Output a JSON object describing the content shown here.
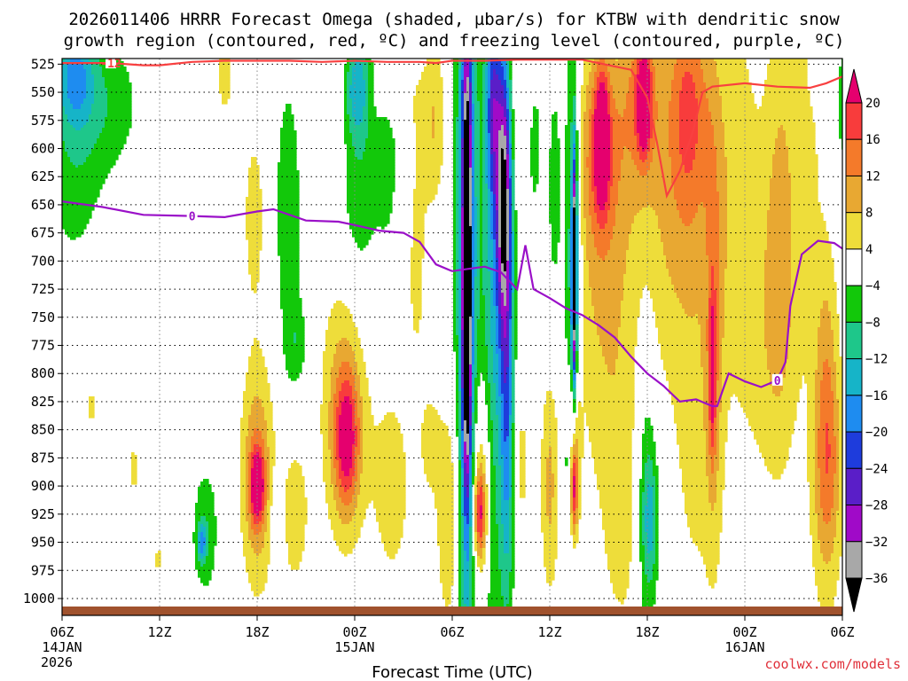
{
  "chart_data": {
    "type": "heatmap",
    "title_line1": "2026011406 HRRR Forecast Omega (shaded, µbar/s) for KTBW with dendritic snow",
    "title_line2": "growth region (contoured, red, ºC) and freezing level (contoured, purple, ºC)",
    "xlabel": "Forecast Time (UTC)",
    "x_ticks": [
      {
        "hour": 0,
        "label": "06Z",
        "sub1": "14JAN",
        "sub2": "2026"
      },
      {
        "hour": 6,
        "label": "12Z",
        "sub1": "",
        "sub2": ""
      },
      {
        "hour": 12,
        "label": "18Z",
        "sub1": "",
        "sub2": ""
      },
      {
        "hour": 18,
        "label": "00Z",
        "sub1": "15JAN",
        "sub2": ""
      },
      {
        "hour": 24,
        "label": "06Z",
        "sub1": "",
        "sub2": ""
      },
      {
        "hour": 30,
        "label": "12Z",
        "sub1": "",
        "sub2": ""
      },
      {
        "hour": 36,
        "label": "18Z",
        "sub1": "",
        "sub2": ""
      },
      {
        "hour": 42,
        "label": "00Z",
        "sub1": "16JAN",
        "sub2": ""
      },
      {
        "hour": 48,
        "label": "06Z",
        "sub1": "",
        "sub2": ""
      }
    ],
    "x_range_hours": [
      0,
      48
    ],
    "y_range_hPa": [
      520,
      1015
    ],
    "y_ticks": [
      "525",
      "550",
      "575",
      "600",
      "625",
      "650",
      "675",
      "700",
      "725",
      "750",
      "775",
      "800",
      "825",
      "850",
      "875",
      "900",
      "925",
      "950",
      "975",
      "1000"
    ],
    "colorbar": {
      "labels": [
        "20",
        "16",
        "12",
        "8",
        "4",
        "−4",
        "−8",
        "−12",
        "−16",
        "−20",
        "−24",
        "−28",
        "−32",
        "−36"
      ],
      "bins": [
        {
          "lo": 20,
          "hi": 24,
          "color": "#e5006e"
        },
        {
          "lo": 16,
          "hi": 20,
          "color": "#f83c3c"
        },
        {
          "lo": 12,
          "hi": 16,
          "color": "#f47a2a"
        },
        {
          "lo": 8,
          "hi": 12,
          "color": "#e8a832"
        },
        {
          "lo": 4,
          "hi": 8,
          "color": "#eedd3a"
        },
        {
          "lo": -4,
          "hi": 4,
          "color": "#ffffff"
        },
        {
          "lo": -8,
          "hi": -4,
          "color": "#12c80a"
        },
        {
          "lo": -12,
          "hi": -8,
          "color": "#1ec78a"
        },
        {
          "lo": -16,
          "hi": -12,
          "color": "#16b4c8"
        },
        {
          "lo": -20,
          "hi": -16,
          "color": "#1e8cf0"
        },
        {
          "lo": -24,
          "hi": -20,
          "color": "#1e3cdc"
        },
        {
          "lo": -28,
          "hi": -24,
          "color": "#5a1ec8"
        },
        {
          "lo": -32,
          "hi": -28,
          "color": "#a00ac8"
        },
        {
          "lo": -36,
          "hi": -32,
          "color": "#a8a8a8"
        },
        {
          "lo": -40,
          "hi": -36,
          "color": "#000000"
        }
      ]
    },
    "omega_features": [
      {
        "hour": 0.7,
        "p": 600,
        "dh": 1.3,
        "dp": 75,
        "amp": -7
      },
      {
        "hour": 0.8,
        "p": 535,
        "dh": 0.8,
        "dp": 30,
        "amp": -13
      },
      {
        "hour": 3.0,
        "p": 560,
        "dh": 1.4,
        "dp": 45,
        "amp": -6
      },
      {
        "hour": 1.8,
        "p": 830,
        "dh": 0.25,
        "dp": 18,
        "amp": 5
      },
      {
        "hour": 4.4,
        "p": 885,
        "dh": 0.3,
        "dp": 22,
        "amp": 5
      },
      {
        "hour": 5.9,
        "p": 965,
        "dh": 0.2,
        "dp": 12,
        "amp": 5
      },
      {
        "hour": 10.0,
        "p": 535,
        "dh": 0.5,
        "dp": 40,
        "amp": 5
      },
      {
        "hour": 8.8,
        "p": 940,
        "dh": 0.6,
        "dp": 45,
        "amp": -7
      },
      {
        "hour": 8.6,
        "p": 950,
        "dh": 0.2,
        "dp": 12,
        "amp": -13
      },
      {
        "hour": 12.0,
        "p": 890,
        "dh": 0.7,
        "dp": 70,
        "amp": 13
      },
      {
        "hour": 12.0,
        "p": 900,
        "dh": 0.3,
        "dp": 22,
        "amp": 18
      },
      {
        "hour": 11.8,
        "p": 660,
        "dh": 0.5,
        "dp": 60,
        "amp": 6
      },
      {
        "hour": 13.2,
        "p": 930,
        "dh": 0.3,
        "dp": 30,
        "amp": -6
      },
      {
        "hour": 14.3,
        "p": 925,
        "dh": 0.7,
        "dp": 55,
        "amp": 6
      },
      {
        "hour": 13.9,
        "p": 655,
        "dh": 0.6,
        "dp": 90,
        "amp": -7
      },
      {
        "hour": 14.4,
        "p": 775,
        "dh": 0.5,
        "dp": 30,
        "amp": -6
      },
      {
        "hour": 17.0,
        "p": 540,
        "dh": 0.9,
        "dp": 50,
        "amp": 6
      },
      {
        "hour": 17.4,
        "p": 830,
        "dh": 1.0,
        "dp": 85,
        "amp": 11
      },
      {
        "hour": 17.5,
        "p": 860,
        "dh": 0.5,
        "dp": 40,
        "amp": 16
      },
      {
        "hour": 18.2,
        "p": 610,
        "dh": 0.9,
        "dp": 100,
        "amp": -8
      },
      {
        "hour": 18.1,
        "p": 545,
        "dh": 0.6,
        "dp": 30,
        "amp": -13
      },
      {
        "hour": 20.0,
        "p": 600,
        "dh": 0.5,
        "dp": 60,
        "amp": -6
      },
      {
        "hour": 20.3,
        "p": 900,
        "dh": 0.9,
        "dp": 70,
        "amp": 6
      },
      {
        "hour": 21.8,
        "p": 720,
        "dh": 0.4,
        "dp": 55,
        "amp": 5
      },
      {
        "hour": 20.0,
        "p": 545,
        "dh": 1.0,
        "dp": 25,
        "amp": 5
      },
      {
        "hour": 22.3,
        "p": 590,
        "dh": 0.7,
        "dp": 60,
        "amp": 5
      },
      {
        "hour": 22.6,
        "p": 860,
        "dh": 0.5,
        "dp": 40,
        "amp": 5
      },
      {
        "hour": 24.9,
        "p": 680,
        "dh": 0.45,
        "dp": 280,
        "amp": -21
      },
      {
        "hour": 24.9,
        "p": 720,
        "dh": 0.18,
        "dp": 130,
        "amp": -38
      },
      {
        "hour": 23.8,
        "p": 930,
        "dh": 0.55,
        "dp": 70,
        "amp": 8
      },
      {
        "hour": 23.0,
        "p": 570,
        "dh": 0.4,
        "dp": 50,
        "amp": 5
      },
      {
        "hour": 25.8,
        "p": 900,
        "dh": 0.5,
        "dp": 70,
        "amp": 11
      },
      {
        "hour": 25.7,
        "p": 925,
        "dh": 0.25,
        "dp": 28,
        "amp": 17
      },
      {
        "hour": 26.5,
        "p": 560,
        "dh": 0.3,
        "dp": 60,
        "amp": -16
      },
      {
        "hour": 26.5,
        "p": 760,
        "dh": 0.55,
        "dp": 240,
        "amp": -12
      },
      {
        "hour": 27.2,
        "p": 640,
        "dh": 0.35,
        "dp": 90,
        "amp": -34
      },
      {
        "hour": 27.4,
        "p": 850,
        "dh": 0.3,
        "dp": 110,
        "amp": -17
      },
      {
        "hour": 28.0,
        "p": 560,
        "dh": 0.6,
        "dp": 70,
        "amp": 5
      },
      {
        "hour": 28.2,
        "p": 880,
        "dh": 0.5,
        "dp": 60,
        "amp": 5
      },
      {
        "hour": 29.0,
        "p": 595,
        "dh": 0.4,
        "dp": 60,
        "amp": -6
      },
      {
        "hour": 30.0,
        "p": 900,
        "dh": 0.4,
        "dp": 70,
        "amp": 9
      },
      {
        "hour": 31.5,
        "p": 870,
        "dh": 0.3,
        "dp": 60,
        "amp": 13
      },
      {
        "hour": 31.5,
        "p": 900,
        "dh": 0.15,
        "dp": 28,
        "amp": 18
      },
      {
        "hour": 31.4,
        "p": 700,
        "dh": 0.35,
        "dp": 160,
        "amp": -13
      },
      {
        "hour": 31.5,
        "p": 710,
        "dh": 0.1,
        "dp": 70,
        "amp": -40
      },
      {
        "hour": 30.3,
        "p": 640,
        "dh": 0.35,
        "dp": 90,
        "amp": -6
      },
      {
        "hour": 31.2,
        "p": 880,
        "dh": 0.3,
        "dp": 30,
        "amp": -6
      },
      {
        "hour": 33.1,
        "p": 600,
        "dh": 1.0,
        "dp": 70,
        "amp": 14
      },
      {
        "hour": 33.2,
        "p": 590,
        "dh": 0.3,
        "dp": 40,
        "amp": 20
      },
      {
        "hour": 33.1,
        "p": 760,
        "dh": 1.3,
        "dp": 100,
        "amp": 6
      },
      {
        "hour": 32.9,
        "p": 962,
        "dh": 0.15,
        "dp": 18,
        "amp": -6
      },
      {
        "hour": 35.6,
        "p": 550,
        "dh": 0.9,
        "dp": 60,
        "amp": 12
      },
      {
        "hour": 35.8,
        "p": 560,
        "dh": 0.3,
        "dp": 30,
        "amp": 21
      },
      {
        "hour": 34.5,
        "p": 920,
        "dh": 1.0,
        "dp": 90,
        "amp": 6
      },
      {
        "hour": 35.9,
        "p": 900,
        "dh": 0.5,
        "dp": 120,
        "amp": -8
      },
      {
        "hour": 36.2,
        "p": 930,
        "dh": 0.35,
        "dp": 40,
        "amp": -10
      },
      {
        "hour": 36.2,
        "p": 700,
        "dh": 1.8,
        "dp": 90,
        "amp": 5
      },
      {
        "hour": 38.5,
        "p": 560,
        "dh": 0.9,
        "dp": 70,
        "amp": 12
      },
      {
        "hour": 38.8,
        "p": 620,
        "dh": 1.6,
        "dp": 120,
        "amp": 6
      },
      {
        "hour": 40.1,
        "p": 770,
        "dh": 0.4,
        "dp": 140,
        "amp": 8
      },
      {
        "hour": 40.0,
        "p": 800,
        "dh": 0.15,
        "dp": 50,
        "amp": 13
      },
      {
        "hour": 39.0,
        "p": 870,
        "dh": 1.0,
        "dp": 110,
        "amp": 5
      },
      {
        "hour": 41.5,
        "p": 640,
        "dh": 1.0,
        "dp": 130,
        "amp": 5
      },
      {
        "hour": 43.5,
        "p": 780,
        "dh": 1.3,
        "dp": 100,
        "amp": 5
      },
      {
        "hour": 44.1,
        "p": 680,
        "dh": 0.6,
        "dp": 120,
        "amp": 5
      },
      {
        "hour": 45.3,
        "p": 600,
        "dh": 1.5,
        "dp": 150,
        "amp": 5
      },
      {
        "hour": 47.0,
        "p": 930,
        "dh": 0.7,
        "dp": 80,
        "amp": 6
      },
      {
        "hour": 47.1,
        "p": 870,
        "dh": 0.6,
        "dp": 60,
        "amp": 10
      },
      {
        "hour": 47.0,
        "p": 770,
        "dh": 0.5,
        "dp": 60,
        "amp": 6
      },
      {
        "hour": 46.5,
        "p": 525,
        "dh": 0.3,
        "dp": 20,
        "amp": -6
      },
      {
        "hour": 48.0,
        "p": 560,
        "dh": 0.3,
        "dp": 50,
        "amp": -7
      }
    ],
    "freezing_level": {
      "label": "0",
      "color": "#9a10c8",
      "points": [
        [
          0,
          647
        ],
        [
          2.5,
          652
        ],
        [
          5,
          659
        ],
        [
          8,
          660
        ],
        [
          10,
          661
        ],
        [
          12,
          656
        ],
        [
          13,
          654
        ],
        [
          15,
          664
        ],
        [
          17,
          665
        ],
        [
          18,
          668
        ],
        [
          19.5,
          673
        ],
        [
          21,
          675
        ],
        [
          22,
          683
        ],
        [
          23,
          703
        ],
        [
          24,
          709
        ],
        [
          25,
          707
        ],
        [
          26,
          705
        ],
        [
          27,
          710
        ],
        [
          28,
          725
        ],
        [
          28.5,
          686
        ],
        [
          29,
          725
        ],
        [
          30,
          733
        ],
        [
          31,
          742
        ],
        [
          32,
          748
        ],
        [
          33,
          757
        ],
        [
          34,
          768
        ],
        [
          35,
          785
        ],
        [
          36,
          800
        ],
        [
          37,
          811
        ],
        [
          38,
          825
        ],
        [
          39,
          823
        ],
        [
          40,
          829
        ],
        [
          40.3,
          829
        ],
        [
          41,
          800
        ],
        [
          42,
          807
        ],
        [
          43,
          812
        ],
        [
          44,
          806
        ],
        [
          44.5,
          790
        ],
        [
          44.8,
          740
        ],
        [
          45.5,
          694
        ],
        [
          46.5,
          682
        ],
        [
          47.5,
          684
        ],
        [
          48,
          689
        ]
      ]
    },
    "dgz_contour": {
      "label": "-12",
      "color": "#f84040",
      "points": [
        [
          0,
          524
        ],
        [
          3,
          524
        ],
        [
          5,
          526
        ],
        [
          6,
          526
        ],
        [
          8,
          523
        ],
        [
          10,
          522
        ],
        [
          12,
          522
        ],
        [
          14,
          522
        ],
        [
          16,
          523
        ],
        [
          18,
          522
        ],
        [
          20,
          523
        ],
        [
          22,
          523
        ],
        [
          23,
          524
        ],
        [
          24,
          522
        ],
        [
          26,
          522
        ],
        [
          28,
          521
        ],
        [
          30,
          521
        ],
        [
          32,
          521
        ],
        [
          34,
          527
        ],
        [
          35,
          530
        ],
        [
          36,
          555
        ],
        [
          36.6,
          595
        ],
        [
          37.2,
          642
        ],
        [
          38,
          620
        ],
        [
          38.8,
          585
        ],
        [
          39.4,
          550
        ],
        [
          40,
          545
        ],
        [
          42,
          542
        ],
        [
          44,
          545
        ],
        [
          46,
          546
        ],
        [
          47,
          542
        ],
        [
          48,
          536
        ]
      ]
    },
    "credit": "coolwx.com/models"
  }
}
